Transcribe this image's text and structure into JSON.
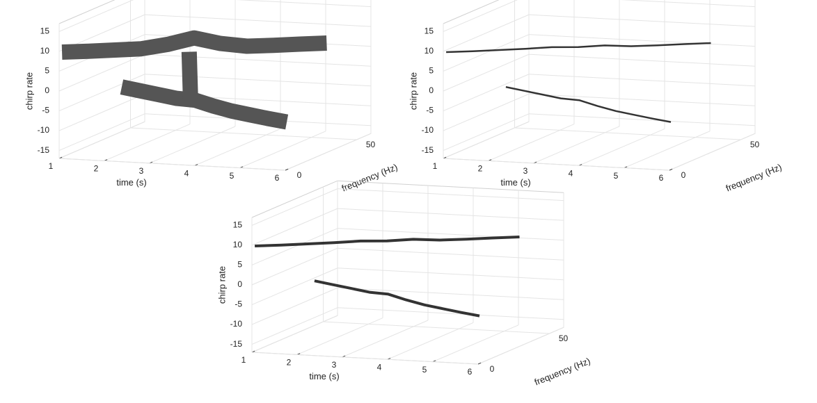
{
  "chart_data": [
    {
      "type": "surface",
      "color": "#555555",
      "xlabel": "time (s)",
      "ylabel": "frequency (Hz)",
      "zlabel": "chirp rate",
      "xlim": [
        1,
        6
      ],
      "xticks": [
        1,
        2,
        3,
        4,
        5,
        6
      ],
      "ylim": [
        0,
        60
      ],
      "yticks": [
        0,
        50
      ],
      "zlim": [
        -17,
        17
      ],
      "zticks": [
        -15,
        -10,
        -5,
        0,
        5,
        10,
        15
      ],
      "grid": true,
      "series": [
        {
          "x": [
            1,
            1.5,
            2,
            2.5,
            3,
            3.5,
            4,
            4.5,
            5,
            5.5,
            6
          ],
          "y": [
            2,
            4.7,
            7.4,
            10,
            12.7,
            15.4,
            18,
            20.7,
            23.4,
            26,
            29
          ],
          "z": [
            9.5,
            9.6,
            9.8,
            10,
            11,
            12.5,
            11,
            10.2,
            10.3,
            10.5,
            10.6
          ]
        },
        {
          "x": [
            1.5,
            2,
            2.5,
            3,
            3.5,
            4,
            4.5,
            5,
            5.5,
            6
          ],
          "y": [
            28,
            25,
            22,
            19,
            16,
            13,
            10,
            7,
            4,
            1
          ],
          "z": [
            -3,
            -3.2,
            -3.4,
            -3.6,
            -3.3,
            -4,
            -4.5,
            -4.7,
            -4.9,
            -5
          ]
        },
        {
          "x": [
            3.4,
            3.4,
            3.4
          ],
          "y": [
            15,
            15.5,
            16
          ],
          "z": [
            9,
            3,
            -3
          ]
        }
      ]
    },
    {
      "type": "scatter3d",
      "color": "#333333",
      "xlabel": "time (s)",
      "ylabel": "frequency (Hz)",
      "zlabel": "chirp rate",
      "xlim": [
        1,
        6
      ],
      "xticks": [
        1,
        2,
        3,
        4,
        5,
        6
      ],
      "ylim": [
        0,
        60
      ],
      "yticks": [
        0,
        50
      ],
      "zlim": [
        -17,
        17
      ],
      "zticks": [
        -15,
        -10,
        -5,
        0,
        5,
        10,
        15
      ],
      "grid": true,
      "series": [
        {
          "x": [
            1,
            1.5,
            2,
            2.5,
            3,
            3.5,
            4,
            4.5,
            5,
            5.5,
            6
          ],
          "y": [
            2,
            4.7,
            7.4,
            10,
            12.7,
            15.4,
            18,
            20.7,
            23.4,
            26,
            29
          ],
          "z": [
            9.5,
            9.6,
            9.8,
            10,
            10.3,
            10.2,
            10.5,
            10.2,
            10.3,
            10.5,
            10.6
          ]
        },
        {
          "x": [
            1.5,
            2,
            2.5,
            3,
            3.5,
            4,
            4.5,
            5,
            5.5,
            6
          ],
          "y": [
            28,
            25,
            22,
            19,
            16,
            13,
            10,
            7,
            4,
            1
          ],
          "z": [
            -3,
            -3.2,
            -3.4,
            -3.6,
            -3.3,
            -4,
            -4.5,
            -4.7,
            -4.9,
            -5
          ]
        }
      ]
    },
    {
      "type": "scatter3d",
      "color": "#333333",
      "xlabel": "time (s)",
      "ylabel": "frequency (Hz)",
      "zlabel": "chirp rate",
      "xlim": [
        1,
        6
      ],
      "xticks": [
        1,
        2,
        3,
        4,
        5,
        6
      ],
      "ylim": [
        0,
        60
      ],
      "yticks": [
        0,
        50
      ],
      "zlim": [
        -17,
        17
      ],
      "zticks": [
        -15,
        -10,
        -5,
        0,
        5,
        10,
        15
      ],
      "grid": true,
      "series": [
        {
          "x": [
            1,
            1.5,
            2,
            2.5,
            3,
            3.5,
            4,
            4.5,
            5,
            5.5,
            6
          ],
          "y": [
            2,
            4.7,
            7.4,
            10,
            12.7,
            15.4,
            18,
            20.7,
            23.4,
            26,
            29
          ],
          "z": [
            9.5,
            9.6,
            9.8,
            10,
            10.3,
            10.2,
            10.5,
            10.2,
            10.3,
            10.5,
            10.6
          ]
        },
        {
          "x": [
            1.5,
            2,
            2.5,
            3,
            3.5,
            4,
            4.5,
            5,
            5.5,
            6
          ],
          "y": [
            28,
            25,
            22,
            19,
            16,
            13,
            10,
            7,
            4,
            1
          ],
          "z": [
            -3,
            -3.2,
            -3.4,
            -3.6,
            -3.3,
            -4,
            -4.5,
            -4.7,
            -4.9,
            -5
          ]
        }
      ]
    }
  ]
}
